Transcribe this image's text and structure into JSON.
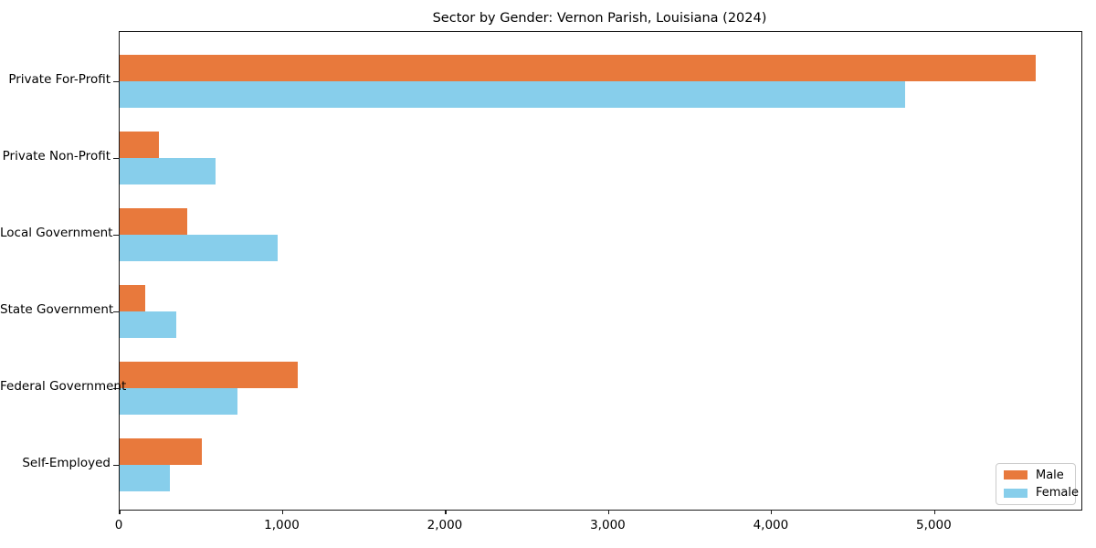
{
  "chart_data": {
    "type": "bar",
    "orientation": "horizontal",
    "title": "Sector by Gender: Vernon Parish, Louisiana (2024)",
    "categories": [
      "Private For-Profit",
      "Private Non-Profit",
      "Local Government",
      "State Government",
      "Federal Government",
      "Self-Employed"
    ],
    "series": [
      {
        "name": "Male",
        "color": "#E8793C",
        "values": [
          5620,
          240,
          415,
          155,
          1095,
          505
        ]
      },
      {
        "name": "Female",
        "color": "#87CEEB",
        "values": [
          4820,
          590,
          970,
          350,
          720,
          310
        ]
      }
    ],
    "xlabel": "",
    "ylabel": "",
    "xlim": [
      0,
      5900
    ],
    "xticks": [
      0,
      1000,
      2000,
      3000,
      4000,
      5000
    ],
    "xtick_labels": [
      "0",
      "1,000",
      "2,000",
      "3,000",
      "4,000",
      "5,000"
    ],
    "legend": {
      "position": "lower right",
      "entries": [
        "Male",
        "Female"
      ]
    },
    "grid": false,
    "background": "#ffffff"
  }
}
